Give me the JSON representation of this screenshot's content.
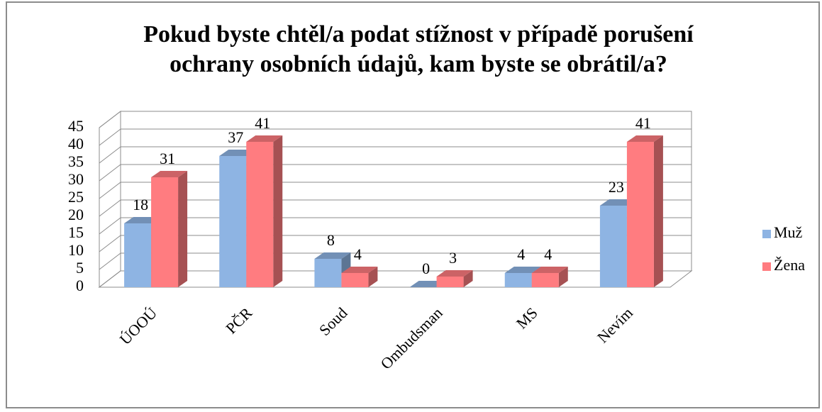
{
  "chart_data": {
    "type": "bar3d",
    "title": "Pokud byste chtěl/a podat stížnost v případě porušení ochrany osobních údajů, kam byste se obrátil/a?",
    "categories": [
      "ÚOOÚ",
      "PČR",
      "Soud",
      "Ombudsman",
      "MS",
      "Nevím"
    ],
    "series": [
      {
        "name": "Muž",
        "color": "#8eb4e3",
        "values": [
          18,
          37,
          8,
          0,
          4,
          23
        ]
      },
      {
        "name": "Žena",
        "color": "#ff7c80",
        "values": [
          31,
          41,
          4,
          3,
          4,
          41
        ]
      }
    ],
    "ylim": [
      0,
      45
    ],
    "yticks": [
      0,
      5,
      10,
      15,
      20,
      25,
      30,
      35,
      40,
      45
    ],
    "grid": true,
    "legend": "right"
  }
}
